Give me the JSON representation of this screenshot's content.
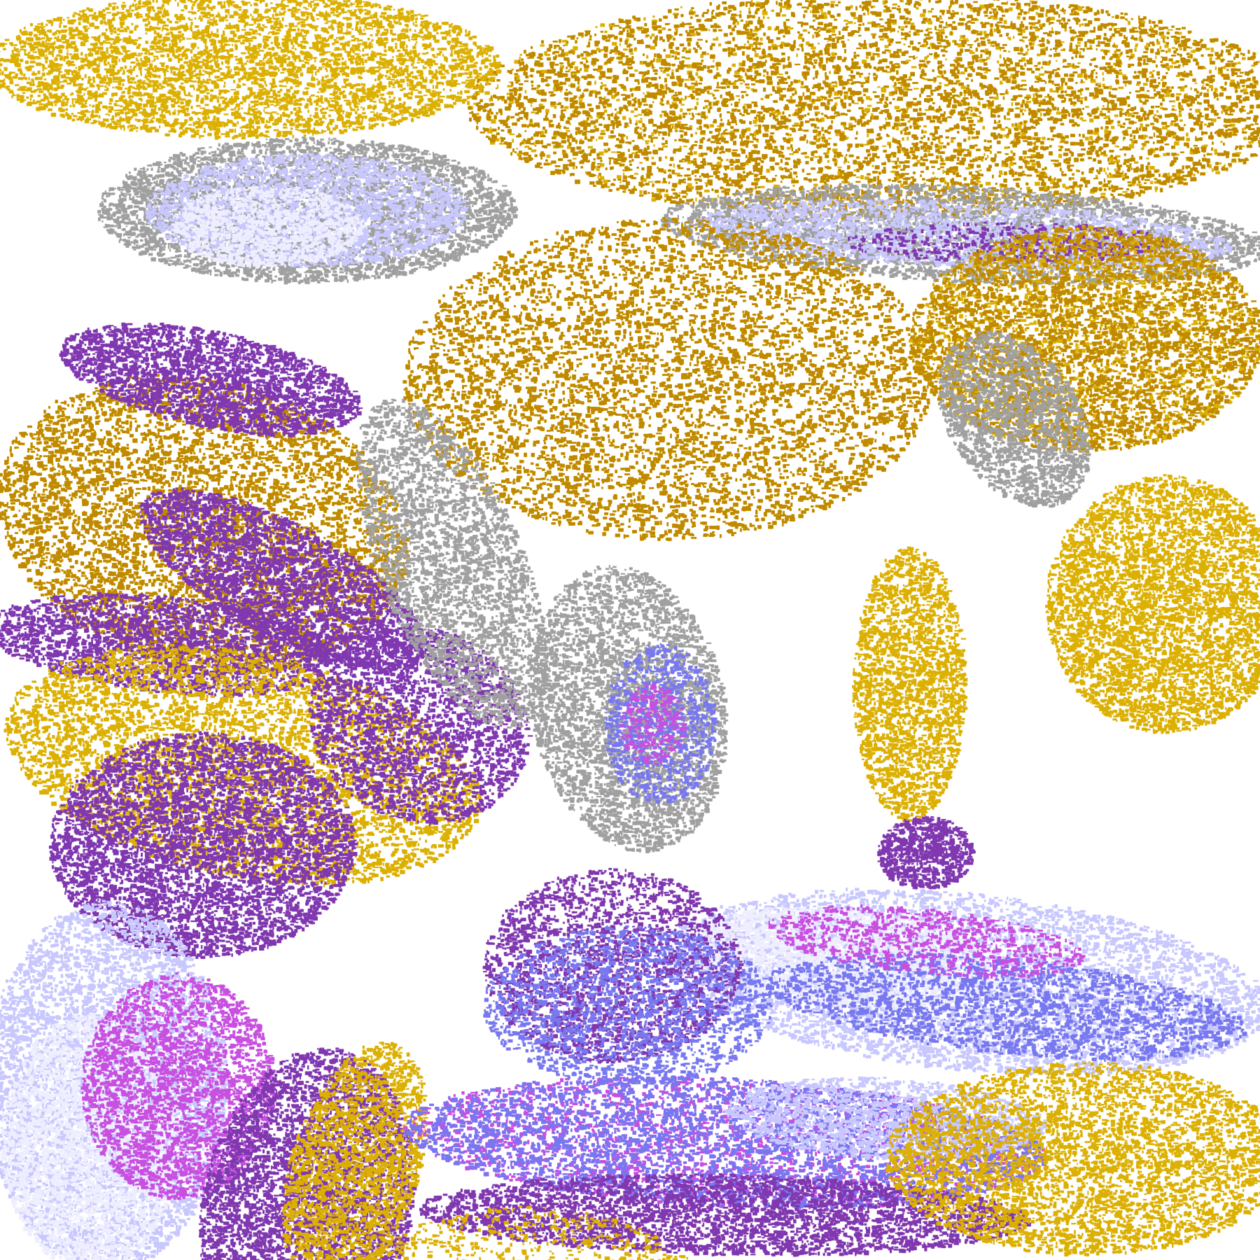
{
  "image": {
    "kind": "false-color satellite cloud classification imagery",
    "palette": {
      "clear": "#ffffff",
      "gold": "#dcb000",
      "dark_gold": "#c08a00",
      "purple": "#8038b0",
      "magenta": "#c850e0",
      "periwinkle": "#7878f0",
      "light_lavender": "#c8c8ff",
      "pale_lavender": "#eeeeff",
      "gray": "#a0a0a0",
      "dark_gray": "#888888"
    }
  }
}
